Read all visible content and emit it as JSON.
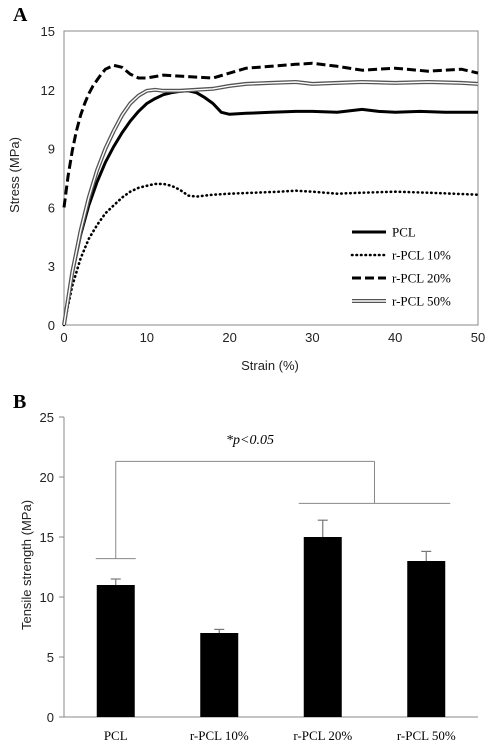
{
  "chart_data": [
    {
      "panel": "A",
      "type": "line",
      "xlabel": "Strain (%)",
      "ylabel": "Stress (MPa)",
      "xlim": [
        0,
        50
      ],
      "ylim": [
        0,
        15
      ],
      "xticks": [
        "0",
        "10",
        "20",
        "30",
        "40",
        "50"
      ],
      "yticks": [
        "0",
        "3",
        "6",
        "9",
        "12",
        "15"
      ],
      "legend_position": "bottom-right",
      "series": [
        {
          "name": "PCL",
          "style": "solid-thick",
          "x": [
            0,
            1,
            2,
            3,
            4,
            5,
            6,
            7,
            8,
            9,
            10,
            11,
            12,
            13,
            14,
            15,
            16,
            17,
            18,
            19,
            20,
            22,
            25,
            28,
            30,
            33,
            36,
            38,
            40,
            43,
            46,
            50
          ],
          "y": [
            0,
            2.6,
            4.6,
            6.1,
            7.3,
            8.3,
            9.1,
            9.8,
            10.4,
            10.9,
            11.3,
            11.55,
            11.75,
            11.85,
            11.92,
            11.95,
            11.85,
            11.6,
            11.3,
            10.85,
            10.75,
            10.8,
            10.85,
            10.9,
            10.9,
            10.85,
            11.0,
            10.9,
            10.85,
            10.9,
            10.85,
            10.85
          ]
        },
        {
          "name": "r-PCL 10%",
          "style": "dotted",
          "x": [
            0,
            1,
            2,
            3,
            4,
            5,
            6,
            7,
            8,
            9,
            10,
            11,
            12,
            13,
            14,
            15,
            16,
            17,
            18,
            20,
            23,
            26,
            28,
            30,
            33,
            36,
            40,
            44,
            47,
            50
          ],
          "y": [
            0,
            2.0,
            3.4,
            4.4,
            5.1,
            5.7,
            6.1,
            6.5,
            6.8,
            7.0,
            7.1,
            7.2,
            7.2,
            7.1,
            6.9,
            6.6,
            6.55,
            6.6,
            6.65,
            6.7,
            6.75,
            6.8,
            6.85,
            6.8,
            6.7,
            6.75,
            6.8,
            6.75,
            6.7,
            6.65
          ]
        },
        {
          "name": "r-PCL 20%",
          "style": "dashed",
          "x": [
            0,
            0.5,
            1,
            1.5,
            2,
            2.5,
            3,
            3.5,
            4,
            4.5,
            5,
            6,
            7,
            8,
            9,
            10,
            12,
            14,
            16,
            18,
            20,
            22,
            25,
            28,
            30,
            33,
            36,
            40,
            44,
            48,
            50
          ],
          "y": [
            6.0,
            7.6,
            8.9,
            9.9,
            10.7,
            11.3,
            11.8,
            12.2,
            12.5,
            12.8,
            13.05,
            13.25,
            13.15,
            12.8,
            12.6,
            12.6,
            12.75,
            12.7,
            12.65,
            12.6,
            12.85,
            13.1,
            13.2,
            13.3,
            13.35,
            13.2,
            13.0,
            13.1,
            12.95,
            13.05,
            12.85
          ]
        },
        {
          "name": "r-PCL 50%",
          "style": "double",
          "x": [
            0,
            1,
            2,
            3,
            4,
            5,
            6,
            7,
            8,
            9,
            10,
            11,
            12,
            14,
            16,
            18,
            20,
            22,
            25,
            28,
            30,
            33,
            36,
            40,
            44,
            48,
            50
          ],
          "y": [
            0,
            2.7,
            4.8,
            6.5,
            7.9,
            9.0,
            9.9,
            10.7,
            11.3,
            11.7,
            11.95,
            12.0,
            11.95,
            11.95,
            12.0,
            12.05,
            12.2,
            12.3,
            12.35,
            12.4,
            12.3,
            12.35,
            12.4,
            12.35,
            12.4,
            12.35,
            12.3
          ]
        }
      ]
    },
    {
      "panel": "B",
      "type": "bar",
      "ylabel": "Tensile strength (MPa)",
      "ylim": [
        0,
        25
      ],
      "yticks": [
        "0",
        "5",
        "10",
        "15",
        "20",
        "25"
      ],
      "categories": [
        "PCL",
        "r-PCL 10%",
        "r-PCL 20%",
        "r-PCL 50%"
      ],
      "values": [
        11.0,
        7.0,
        15.0,
        13.0
      ],
      "errors": [
        0.5,
        0.3,
        1.4,
        0.8
      ],
      "annotation": "*p<0.05"
    }
  ]
}
